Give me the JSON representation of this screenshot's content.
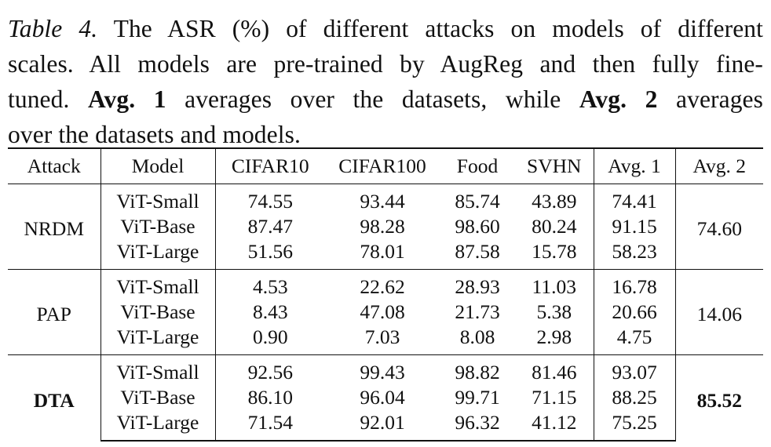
{
  "caption": {
    "label": "Table 4.",
    "line1_rest": " The ASR (%) of different attacks on models of different",
    "line2": "scales. All models are pre-trained by AugReg and then fully fine-",
    "line3_a": "tuned. ",
    "line3_b": "Avg. 1",
    "line3_c": " averages over the datasets, while ",
    "line3_d": "Avg. 2",
    "line3_e": " averages",
    "line4": "over the datasets and models."
  },
  "table": {
    "headers": [
      "Attack",
      "Model",
      "CIFAR10",
      "CIFAR100",
      "Food",
      "SVHN",
      "Avg. 1",
      "Avg. 2"
    ],
    "groups": [
      {
        "attack": "NRDM",
        "bold": false,
        "avg2": "74.60",
        "rows": [
          {
            "model": "ViT-Small",
            "cifar10": "74.55",
            "cifar100": "93.44",
            "food": "85.74",
            "svhn": "43.89",
            "avg1": "74.41"
          },
          {
            "model": "ViT-Base",
            "cifar10": "87.47",
            "cifar100": "98.28",
            "food": "98.60",
            "svhn": "80.24",
            "avg1": "91.15"
          },
          {
            "model": "ViT-Large",
            "cifar10": "51.56",
            "cifar100": "78.01",
            "food": "87.58",
            "svhn": "15.78",
            "avg1": "58.23"
          }
        ]
      },
      {
        "attack": "PAP",
        "bold": false,
        "avg2": "14.06",
        "rows": [
          {
            "model": "ViT-Small",
            "cifar10": "4.53",
            "cifar100": "22.62",
            "food": "28.93",
            "svhn": "11.03",
            "avg1": "16.78"
          },
          {
            "model": "ViT-Base",
            "cifar10": "8.43",
            "cifar100": "47.08",
            "food": "21.73",
            "svhn": "5.38",
            "avg1": "20.66"
          },
          {
            "model": "ViT-Large",
            "cifar10": "0.90",
            "cifar100": "7.03",
            "food": "8.08",
            "svhn": "2.98",
            "avg1": "4.75"
          }
        ]
      },
      {
        "attack": "DTA",
        "bold": true,
        "avg2": "85.52",
        "rows": [
          {
            "model": "ViT-Small",
            "cifar10": "92.56",
            "cifar100": "99.43",
            "food": "98.82",
            "svhn": "81.46",
            "avg1": "93.07"
          },
          {
            "model": "ViT-Base",
            "cifar10": "86.10",
            "cifar100": "96.04",
            "food": "99.71",
            "svhn": "71.15",
            "avg1": "88.25"
          },
          {
            "model": "ViT-Large",
            "cifar10": "71.54",
            "cifar100": "92.01",
            "food": "96.32",
            "svhn": "41.12",
            "avg1": "75.25"
          }
        ]
      }
    ]
  }
}
